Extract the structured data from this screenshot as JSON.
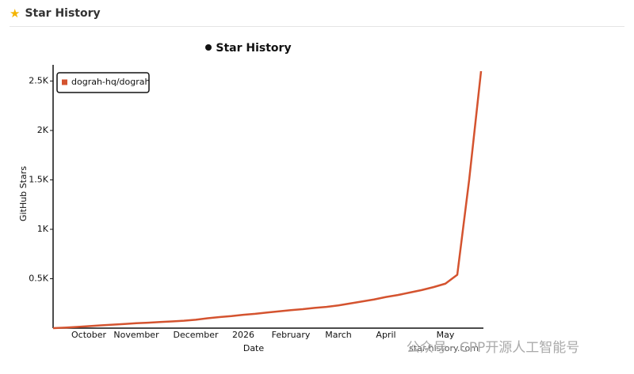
{
  "header": {
    "title": "Star History"
  },
  "chart_data": {
    "type": "line",
    "title": "Star History",
    "x_label": "Date",
    "y_label": "GitHub Stars",
    "categories": [
      null,
      null,
      null,
      "October",
      null,
      null,
      null,
      "November",
      null,
      null,
      null,
      null,
      "December",
      null,
      null,
      null,
      "2026",
      null,
      null,
      null,
      "February",
      null,
      null,
      null,
      "March",
      null,
      null,
      null,
      "April",
      null,
      null,
      null,
      null,
      "May",
      null,
      null,
      null
    ],
    "series": [
      {
        "name": "dograh-hq/dograh",
        "color": "#d4532f",
        "values": [
          0,
          5,
          12,
          20,
          28,
          35,
          42,
          50,
          55,
          62,
          68,
          75,
          85,
          100,
          112,
          122,
          135,
          145,
          158,
          170,
          182,
          192,
          205,
          215,
          230,
          250,
          270,
          290,
          315,
          335,
          360,
          385,
          415,
          450,
          540,
          1500,
          2600
        ]
      }
    ],
    "ylim": [
      0,
      2660
    ],
    "yticks": [
      {
        "value": 500,
        "label": "0.5K"
      },
      {
        "value": 1000,
        "label": "1K"
      },
      {
        "value": 1500,
        "label": "1.5K"
      },
      {
        "value": 2000,
        "label": "2K"
      },
      {
        "value": 2500,
        "label": "2.5K"
      }
    ],
    "legend": "top-left",
    "watermark": "star-history.com"
  },
  "overlay": {
    "text": "公众号 · CPP开源人工智能号"
  }
}
